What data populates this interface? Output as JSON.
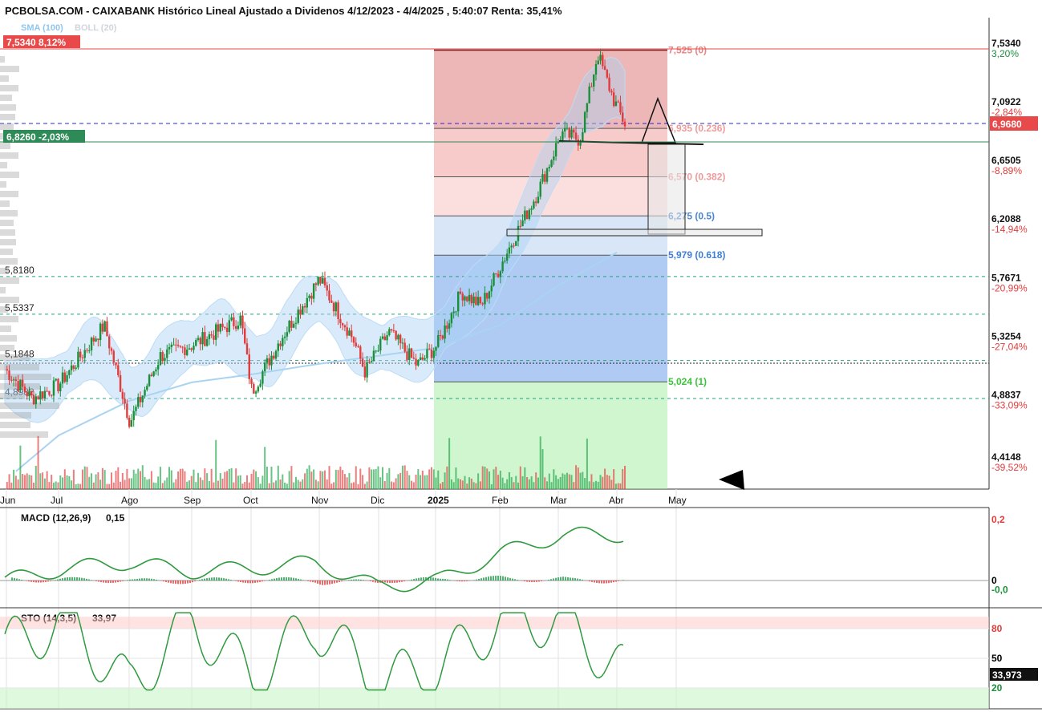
{
  "header": {
    "title": "PCBOLSA.COM - CAIXABANK Histórico Lineal Ajustado a Dividenos 4/12/2023 - 4/4/2025 , 5:40:07 Renta: 35,41%",
    "legend_sma": "SMA (100)",
    "legend_boll": "BOLL (20)"
  },
  "colors": {
    "up": "#1a8f3a",
    "down": "#e23b3b",
    "sma": "#a8d4f2",
    "boll": "#cfe6f8",
    "macd": "#2f9a3f",
    "signal": "#e0302a",
    "fib_red": "#e08a8a",
    "fib_blue": "#8fb7ee",
    "fib_green": "#b9f0b9"
  },
  "price_axis": {
    "ticks": [
      {
        "value": 7.534,
        "label": "7,5340",
        "pct": "3,20%",
        "pct_color": "#1a8f3a"
      },
      {
        "value": 7.0922,
        "label": "7,0922",
        "pct": "-2,84%",
        "pct_color": "#e23b3b"
      },
      {
        "value": 6.6505,
        "label": "6,6505",
        "pct": "-8,89%",
        "pct_color": "#e23b3b"
      },
      {
        "value": 6.2088,
        "label": "6,2088",
        "pct": "-14,94%",
        "pct_color": "#e23b3b"
      },
      {
        "value": 5.7671,
        "label": "5,7671",
        "pct": "-20,99%",
        "pct_color": "#e23b3b"
      },
      {
        "value": 5.3254,
        "label": "5,3254",
        "pct": "-27,04%",
        "pct_color": "#e23b3b"
      },
      {
        "value": 4.8837,
        "label": "4,8837",
        "pct": "-33,09%",
        "pct_color": "#e23b3b"
      },
      {
        "value": 4.4148,
        "label": "4,4148",
        "pct": "-39,52%",
        "pct_color": "#e23b3b"
      }
    ],
    "current_price": "6,9680"
  },
  "price_badges": [
    {
      "value": 7.534,
      "label": "7,5340",
      "pct": "8,12%",
      "color": "#e84a4a"
    },
    {
      "value": 6.826,
      "label": "6,8260",
      "pct": "-2,03%",
      "color": "#2e8b57"
    }
  ],
  "left_levels": [
    {
      "value": 5.818,
      "label": "5,8180"
    },
    {
      "value": 5.5337,
      "label": "5,5337"
    },
    {
      "value": 5.1848,
      "label": "5,1848"
    },
    {
      "value": 4.8982,
      "label": "4,8982"
    }
  ],
  "fibonacci": [
    {
      "value": 7.525,
      "label": "7,525 (0)",
      "color": "#e88585"
    },
    {
      "value": 6.935,
      "label": "6,935 (0.236)",
      "color": "#ef9a9a"
    },
    {
      "value": 6.57,
      "label": "6,570 (0.382)",
      "color": "#ef9a9a"
    },
    {
      "value": 6.275,
      "label": "6,275 (0.5)",
      "color": "#4a86d4"
    },
    {
      "value": 5.979,
      "label": "5,979 (0.618)",
      "color": "#3f7fd6"
    },
    {
      "value": 5.024,
      "label": "5,024 (1)",
      "color": "#3cc43c"
    }
  ],
  "months": [
    "Jun",
    "Jul",
    "Ago",
    "Sep",
    "Oct",
    "Nov",
    "Dic",
    "2025",
    "Feb",
    "Mar",
    "Abr",
    "May"
  ],
  "indicators": {
    "macd": {
      "label": "MACD (12,26,9)",
      "value": "0,15",
      "axis": [
        {
          "value": 0.2,
          "label": "0,2",
          "color": "#e23b3b"
        },
        {
          "value": 0.0,
          "label": "0",
          "color": "#000000"
        },
        {
          "value": -0.03,
          "label": "-0,0",
          "color": "#1a8f3a"
        }
      ]
    },
    "sto": {
      "label": "STO (14,3,5)",
      "value": "33,97",
      "current": "33,973",
      "axis": [
        {
          "value": 80,
          "label": "80",
          "color": "#e23b3b"
        },
        {
          "value": 50,
          "label": "50",
          "color": "#000000"
        },
        {
          "value": 20,
          "label": "20",
          "color": "#1a8f3a"
        }
      ]
    }
  },
  "chart_data": {
    "type": "line",
    "title": "PCBOLSA.COM - CAIXABANK Histórico Lineal Ajustado a Dividenos 4/12/2023 - 4/4/2025 , 5:40:07 Renta: 35,41%",
    "xlabel": "",
    "ylabel": "",
    "ylim": [
      4.3,
      7.65
    ],
    "x": [
      "Jun",
      "Jul",
      "Ago",
      "Sep",
      "Oct",
      "Nov",
      "Dic",
      "2025",
      "Feb",
      "Mar",
      "Abr"
    ],
    "series": [
      {
        "values": [
          5.1,
          4.98,
          4.8,
          5.3,
          5.2,
          5.75,
          5.18,
          5.26,
          5.9,
          6.9,
          7.45
        ]
      },
      {
        "name": "SMA (100)",
        "values": [
          4.35,
          4.62,
          4.88,
          5.02,
          5.08,
          5.16,
          5.22,
          5.28,
          5.45,
          5.75,
          6.0
        ]
      }
    ],
    "macd": [
      0.0,
      0.04,
      0.06,
      0.03,
      0.04,
      0.06,
      -0.02,
      0.0,
      0.09,
      0.15,
      0.15
    ],
    "stochastic": [
      60,
      90,
      20,
      88,
      30,
      85,
      25,
      40,
      90,
      88,
      34
    ]
  }
}
